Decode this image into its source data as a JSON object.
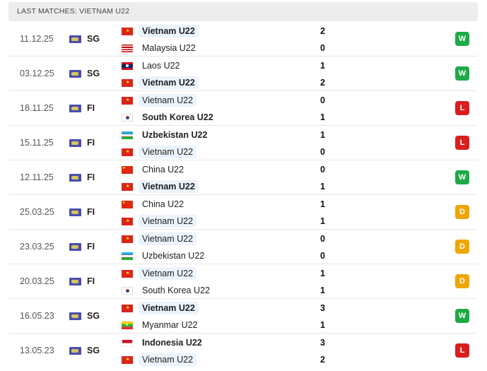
{
  "header": {
    "title": "LAST MATCHES: VIETNAM U22"
  },
  "result_colors": {
    "W": "#1eaa46",
    "L": "#d91e1e",
    "D": "#f0a500"
  },
  "matches": [
    {
      "date": "11.12.25",
      "competition": "SG",
      "home": {
        "name": "Vietnam U22",
        "flag": "vietnam",
        "score": "2",
        "winner": true,
        "highlight": true
      },
      "away": {
        "name": "Malaysia U22",
        "flag": "malaysia",
        "score": "0",
        "winner": false,
        "highlight": false
      },
      "result": "W"
    },
    {
      "date": "03.12.25",
      "competition": "SG",
      "home": {
        "name": "Laos U22",
        "flag": "laos",
        "score": "1",
        "winner": false,
        "highlight": false
      },
      "away": {
        "name": "Vietnam U22",
        "flag": "vietnam",
        "score": "2",
        "winner": true,
        "highlight": true
      },
      "result": "W"
    },
    {
      "date": "18.11.25",
      "competition": "FI",
      "home": {
        "name": "Vietnam U22",
        "flag": "vietnam",
        "score": "0",
        "winner": false,
        "highlight": true
      },
      "away": {
        "name": "South Korea U22",
        "flag": "south-korea",
        "score": "1",
        "winner": true,
        "highlight": false
      },
      "result": "L"
    },
    {
      "date": "15.11.25",
      "competition": "FI",
      "home": {
        "name": "Uzbekistan U22",
        "flag": "uzbekistan",
        "score": "1",
        "winner": true,
        "highlight": false
      },
      "away": {
        "name": "Vietnam U22",
        "flag": "vietnam",
        "score": "0",
        "winner": false,
        "highlight": true
      },
      "result": "L"
    },
    {
      "date": "12.11.25",
      "competition": "FI",
      "home": {
        "name": "China U22",
        "flag": "china",
        "score": "0",
        "winner": false,
        "highlight": false
      },
      "away": {
        "name": "Vietnam U22",
        "flag": "vietnam",
        "score": "1",
        "winner": true,
        "highlight": true
      },
      "result": "W"
    },
    {
      "date": "25.03.25",
      "competition": "FI",
      "home": {
        "name": "China U22",
        "flag": "china",
        "score": "1",
        "winner": false,
        "highlight": false
      },
      "away": {
        "name": "Vietnam U22",
        "flag": "vietnam",
        "score": "1",
        "winner": false,
        "highlight": true
      },
      "result": "D"
    },
    {
      "date": "23.03.25",
      "competition": "FI",
      "home": {
        "name": "Vietnam U22",
        "flag": "vietnam",
        "score": "0",
        "winner": false,
        "highlight": true
      },
      "away": {
        "name": "Uzbekistan U22",
        "flag": "uzbekistan",
        "score": "0",
        "winner": false,
        "highlight": false
      },
      "result": "D"
    },
    {
      "date": "20.03.25",
      "competition": "FI",
      "home": {
        "name": "Vietnam U22",
        "flag": "vietnam",
        "score": "1",
        "winner": false,
        "highlight": true
      },
      "away": {
        "name": "South Korea U22",
        "flag": "south-korea",
        "score": "1",
        "winner": false,
        "highlight": false
      },
      "result": "D"
    },
    {
      "date": "16.05.23",
      "competition": "SG",
      "home": {
        "name": "Vietnam U22",
        "flag": "vietnam",
        "score": "3",
        "winner": true,
        "highlight": true
      },
      "away": {
        "name": "Myanmar U22",
        "flag": "myanmar",
        "score": "1",
        "winner": false,
        "highlight": false
      },
      "result": "W"
    },
    {
      "date": "13.05.23",
      "competition": "SG",
      "home": {
        "name": "Indonesia U22",
        "flag": "indonesia",
        "score": "3",
        "winner": true,
        "highlight": false
      },
      "away": {
        "name": "Vietnam U22",
        "flag": "vietnam",
        "score": "2",
        "winner": false,
        "highlight": true
      },
      "result": "L"
    }
  ]
}
